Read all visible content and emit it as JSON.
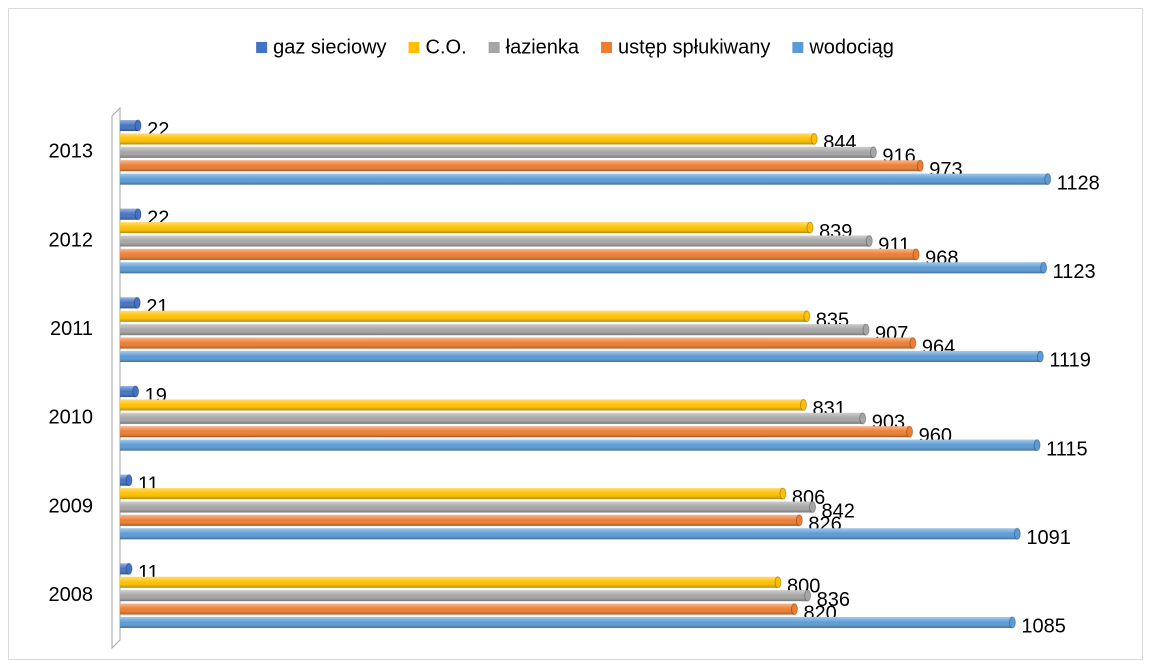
{
  "chart_data": {
    "type": "bar",
    "orientation": "horizontal",
    "categories": [
      "2008",
      "2009",
      "2010",
      "2011",
      "2012",
      "2013"
    ],
    "series": [
      {
        "name": "gaz sieciowy",
        "color": "#4472c4",
        "values": [
          11,
          11,
          19,
          21,
          22,
          22
        ]
      },
      {
        "name": "C.O.",
        "color": "#ffc000",
        "values": [
          800,
          806,
          831,
          835,
          839,
          844
        ]
      },
      {
        "name": "łazienka",
        "color": "#a5a5a5",
        "values": [
          836,
          842,
          903,
          907,
          911,
          916
        ]
      },
      {
        "name": "ustęp spłukiwany",
        "color": "#ed7d31",
        "values": [
          820,
          826,
          960,
          964,
          968,
          973
        ]
      },
      {
        "name": "wodociąg",
        "color": "#5b9bd5",
        "values": [
          1085,
          1091,
          1115,
          1119,
          1123,
          1128
        ]
      }
    ],
    "xlim": [
      0,
      1200
    ],
    "legend": "top"
  }
}
